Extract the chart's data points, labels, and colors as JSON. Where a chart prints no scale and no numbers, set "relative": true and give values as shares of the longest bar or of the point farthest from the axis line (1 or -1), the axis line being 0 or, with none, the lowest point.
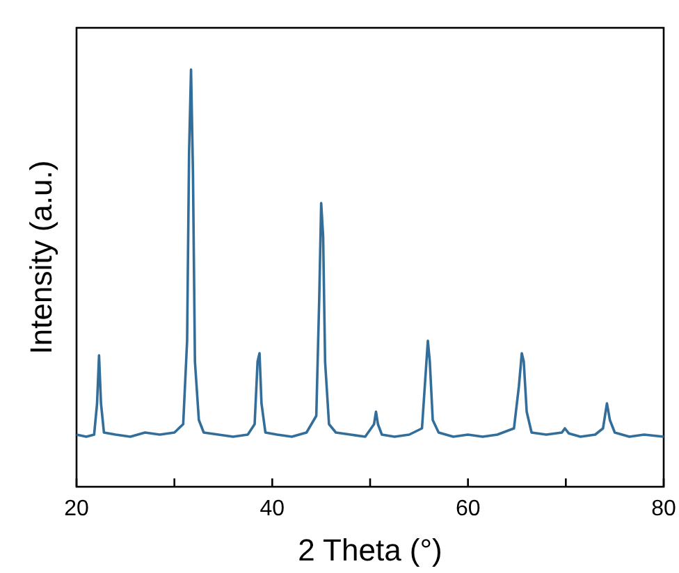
{
  "chart_data": {
    "type": "line",
    "relative": true,
    "xlabel": "2 Theta (°)",
    "ylabel": "Intensity (a.u.)",
    "xlim": [
      20,
      80
    ],
    "xticks": [
      20,
      {
        "value": 30,
        "label": null
      },
      40,
      {
        "value": 50,
        "label": null
      },
      60,
      {
        "value": 70,
        "label": null
      },
      80
    ],
    "marker": "none",
    "line_style": "solid",
    "series": [
      {
        "color": "#336d99",
        "x": [
          20,
          21,
          21.8,
          22.1,
          22.3,
          22.5,
          22.8,
          24,
          25.5,
          27,
          28.5,
          30,
          30.9,
          31.3,
          31.5,
          31.7,
          31.9,
          32.1,
          32.5,
          33,
          34.5,
          36,
          37.5,
          38.2,
          38.5,
          38.7,
          38.9,
          39.3,
          40.5,
          42,
          43.5,
          44.5,
          44.8,
          45.0,
          45.2,
          45.4,
          45.8,
          46.5,
          48,
          49.5,
          50.4,
          50.6,
          50.8,
          51.2,
          52.5,
          54,
          55.3,
          55.7,
          55.9,
          56.1,
          56.4,
          57,
          58.5,
          60,
          61.5,
          63,
          64.7,
          65.2,
          65.5,
          65.7,
          66,
          66.5,
          68,
          69.6,
          69.9,
          70.3,
          71.5,
          73,
          73.8,
          74.2,
          74.5,
          75,
          76.5,
          78,
          80
        ],
        "values": [
          0.125,
          0.12,
          0.125,
          0.2,
          0.315,
          0.2,
          0.13,
          0.125,
          0.12,
          0.13,
          0.125,
          0.13,
          0.15,
          0.35,
          0.8,
          1.0,
          0.75,
          0.3,
          0.16,
          0.13,
          0.125,
          0.12,
          0.125,
          0.15,
          0.3,
          0.32,
          0.2,
          0.13,
          0.125,
          0.12,
          0.13,
          0.17,
          0.45,
          0.68,
          0.6,
          0.3,
          0.15,
          0.13,
          0.125,
          0.12,
          0.15,
          0.18,
          0.15,
          0.125,
          0.12,
          0.125,
          0.14,
          0.28,
          0.35,
          0.3,
          0.16,
          0.13,
          0.12,
          0.125,
          0.12,
          0.125,
          0.14,
          0.24,
          0.32,
          0.3,
          0.18,
          0.13,
          0.125,
          0.13,
          0.14,
          0.128,
          0.12,
          0.125,
          0.14,
          0.2,
          0.16,
          0.13,
          0.12,
          0.125,
          0.12
        ]
      }
    ]
  }
}
